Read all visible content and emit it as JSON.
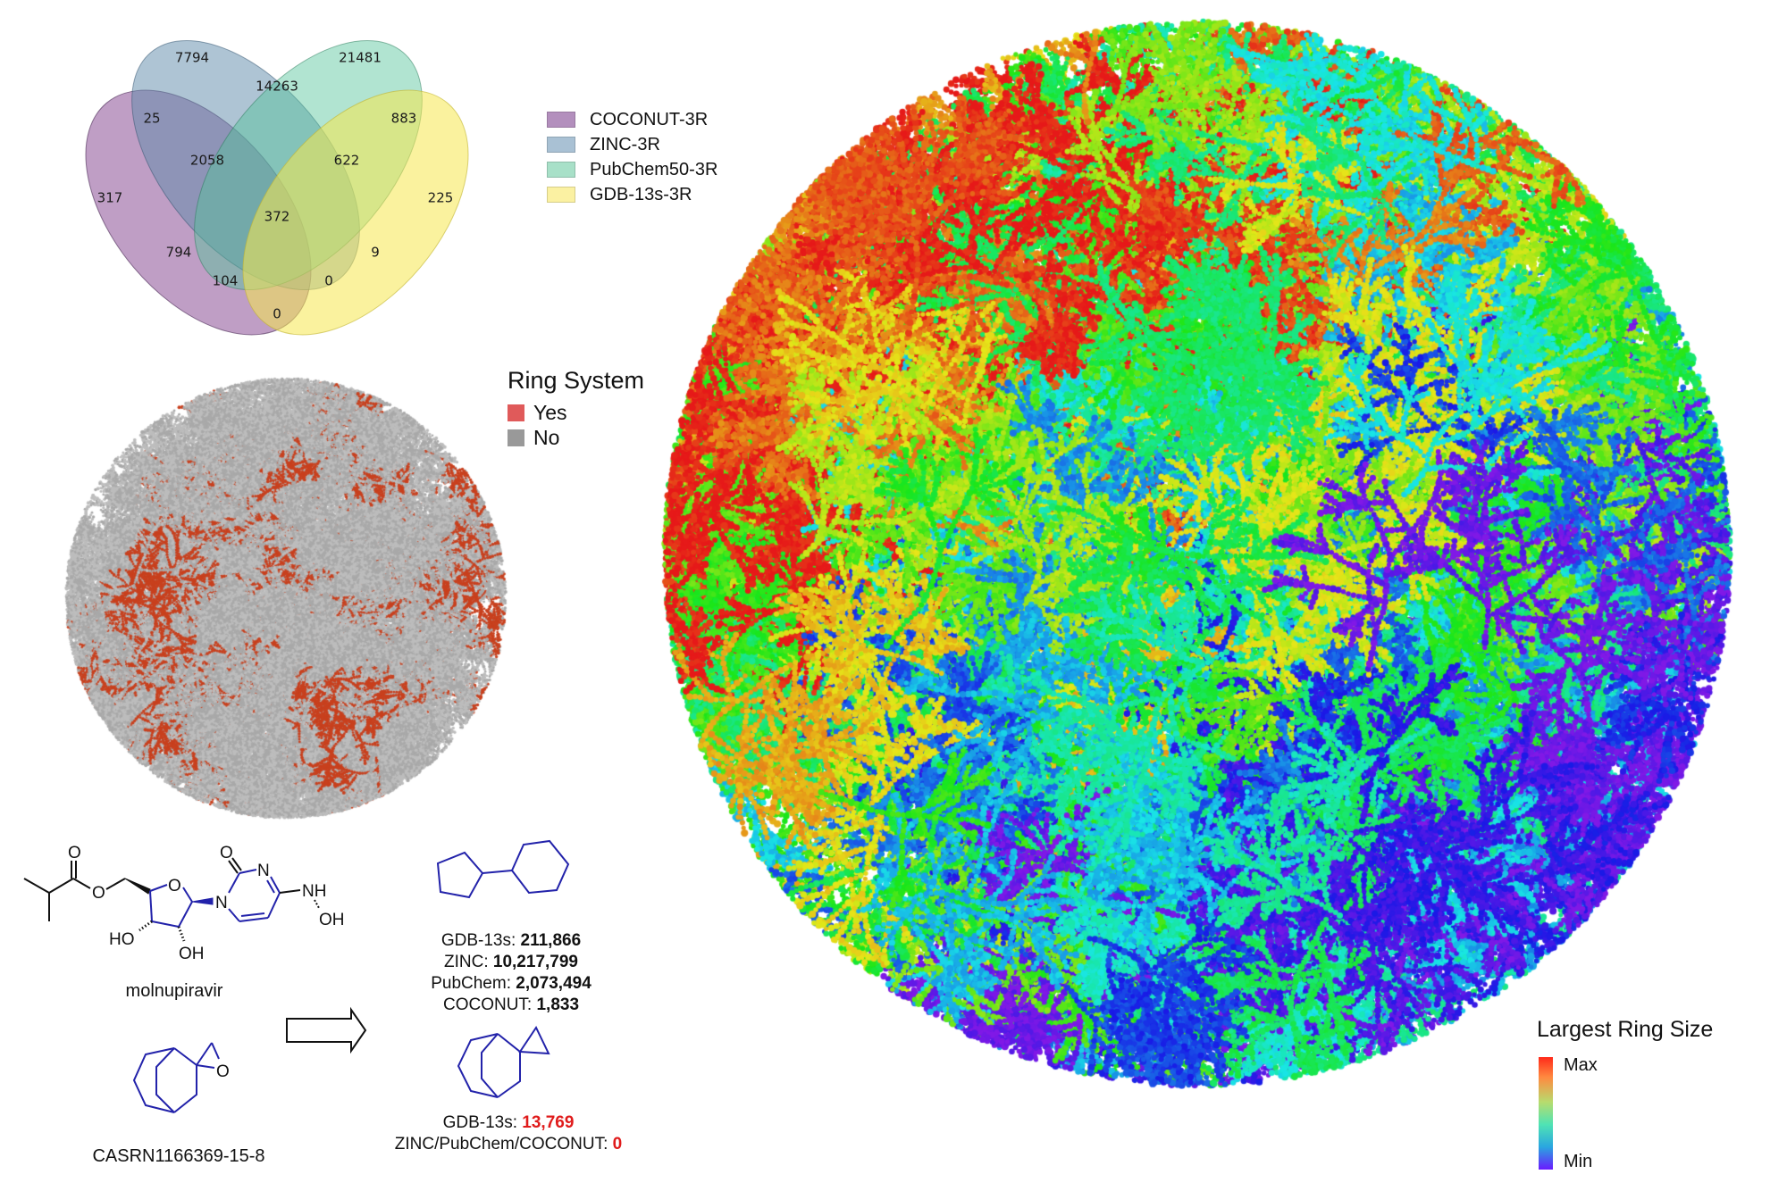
{
  "venn": {
    "sets": [
      {
        "name": "COCONUT-3R",
        "color": "#8a4e96"
      },
      {
        "name": "ZINC-3R",
        "color": "#5d89aa"
      },
      {
        "name": "PubChem50-3R",
        "color": "#52c49a"
      },
      {
        "name": "GDB-13s-3R",
        "color": "#f4e54a"
      }
    ],
    "regions": [
      {
        "sets": "ZINC only",
        "value": "7794"
      },
      {
        "sets": "PubChem only",
        "value": "21481"
      },
      {
        "sets": "ZINC ∩ PubChem",
        "value": "14263"
      },
      {
        "sets": "COCONUT ∩ ZINC",
        "value": "25"
      },
      {
        "sets": "PubChem ∩ GDB",
        "value": "883"
      },
      {
        "sets": "COCONUT ∩ ZINC ∩ PubChem",
        "value": "2058"
      },
      {
        "sets": "ZINC ∩ PubChem ∩ GDB",
        "value": "622"
      },
      {
        "sets": "COCONUT only",
        "value": "317"
      },
      {
        "sets": "GDB only",
        "value": "225"
      },
      {
        "sets": "all four",
        "value": "372"
      },
      {
        "sets": "COCONUT ∩ PubChem",
        "value": "794"
      },
      {
        "sets": "ZINC ∩ GDB",
        "value": "9"
      },
      {
        "sets": "COCONUT ∩ PubChem ∩ GDB",
        "value": "104"
      },
      {
        "sets": "COCONUT ∩ ZINC ∩ GDB",
        "value": "0"
      },
      {
        "sets": "COCONUT ∩ GDB",
        "value": "0"
      }
    ]
  },
  "ring_system_legend": {
    "title": "Ring System",
    "items": [
      {
        "label": "Yes",
        "color": "#e05a5a"
      },
      {
        "label": "No",
        "color": "#999999"
      }
    ]
  },
  "tmap_small": {
    "highlight_color": "#c8401e",
    "base_color": "#b9b9b9"
  },
  "tmap_large": {
    "colorbar": {
      "title": "Largest Ring Size",
      "max_label": "Max",
      "min_label": "Min"
    }
  },
  "molecules": {
    "molnupiravir": {
      "name": "molnupiravir",
      "atoms": {
        "o1": "O",
        "o2": "O",
        "o3": "O",
        "o4": "O",
        "n1": "N",
        "n3": "N",
        "nh": "NH",
        "oh1": "OH",
        "ho": "HO",
        "oh2": "OH"
      }
    },
    "casrn": {
      "name": "CASRN1166369-15-8",
      "atoms": {
        "o": "O"
      }
    },
    "scaffold_1": {
      "stats": [
        {
          "label": "GDB-13s: ",
          "value": "211,866"
        },
        {
          "label": "ZINC: ",
          "value": "10,217,799"
        },
        {
          "label": "PubChem: ",
          "value": "2,073,494"
        },
        {
          "label": "COCONUT: ",
          "value": "1,833"
        }
      ]
    },
    "scaffold_2": {
      "stats": [
        {
          "label": "GDB-13s: ",
          "value": "13,769"
        },
        {
          "label": "ZINC/PubChem/COCONUT: ",
          "value": "0"
        }
      ]
    }
  }
}
